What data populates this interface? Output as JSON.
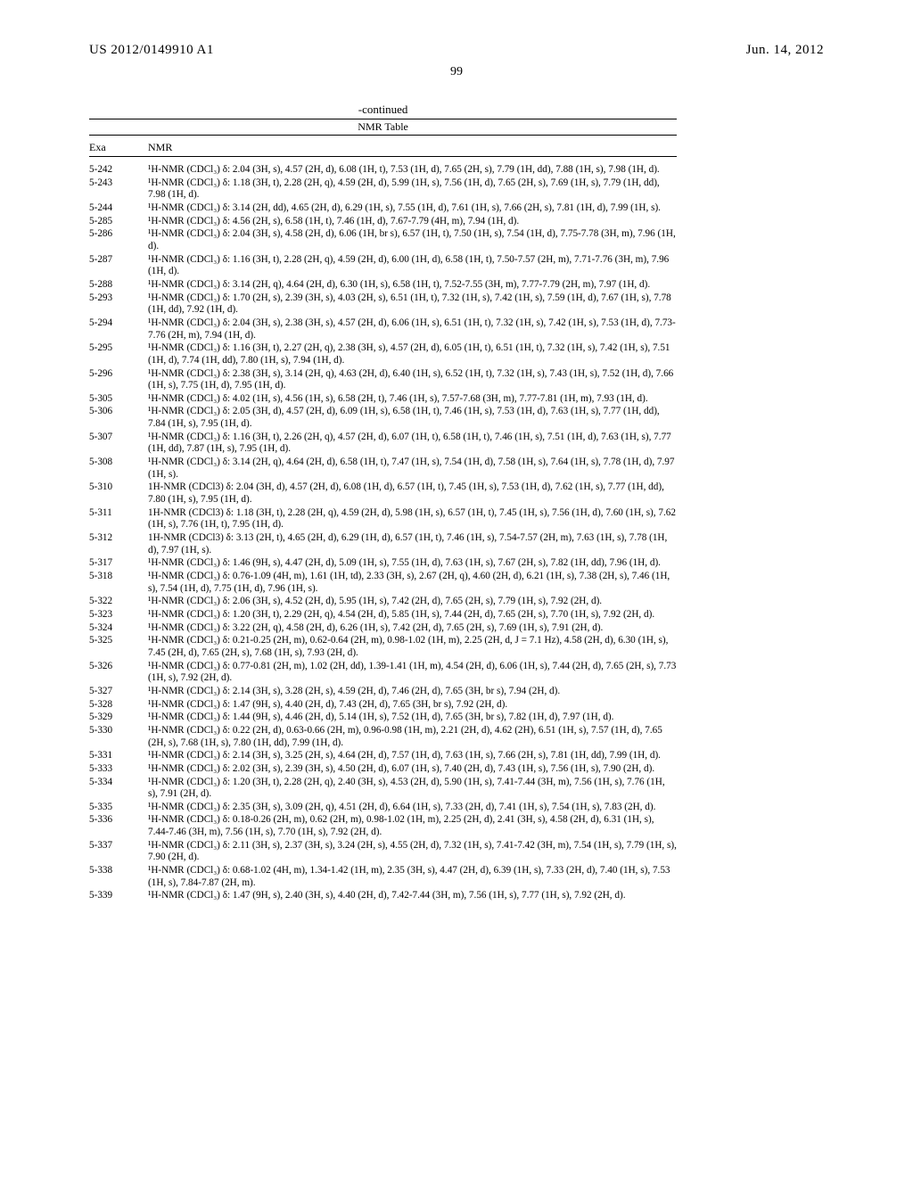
{
  "header": {
    "pub_number": "US 2012/0149910 A1",
    "date": "Jun. 14, 2012",
    "page_number": "99"
  },
  "table": {
    "continued_label": "-continued",
    "title": "NMR Table",
    "col_exa": "Exa",
    "col_nmr": "NMR",
    "rows": [
      {
        "exa": "5-242",
        "nmr": "¹H-NMR (CDCl₃) δ: 2.04 (3H, s), 4.57 (2H, d), 6.08 (1H, t), 7.53 (1H, d), 7.65 (2H, s), 7.79 (1H, dd), 7.88 (1H, s), 7.98 (1H, d)."
      },
      {
        "exa": "5-243",
        "nmr": "¹H-NMR (CDCl₃) δ: 1.18 (3H, t), 2.28 (2H, q), 4.59 (2H, d), 5.99 (1H, s), 7.56 (1H, d), 7.65 (2H, s), 7.69 (1H, s), 7.79 (1H, dd), 7.98 (1H, d)."
      },
      {
        "exa": "5-244",
        "nmr": "¹H-NMR (CDCl₃) δ: 3.14 (2H, dd), 4.65 (2H, d), 6.29 (1H, s), 7.55 (1H, d), 7.61 (1H, s), 7.66 (2H, s), 7.81 (1H, d), 7.99 (1H, s)."
      },
      {
        "exa": "5-285",
        "nmr": "¹H-NMR (CDCl₃) δ: 4.56 (2H, s), 6.58 (1H, t), 7.46 (1H, d), 7.67-7.79 (4H, m), 7.94 (1H, d)."
      },
      {
        "exa": "5-286",
        "nmr": "¹H-NMR (CDCl₃) δ: 2.04 (3H, s), 4.58 (2H, d), 6.06 (1H, br s), 6.57 (1H, t), 7.50 (1H, s), 7.54 (1H, d), 7.75-7.78 (3H, m), 7.96 (1H, d)."
      },
      {
        "exa": "5-287",
        "nmr": "¹H-NMR (CDCl₃) δ: 1.16 (3H, t), 2.28 (2H, q), 4.59 (2H, d), 6.00 (1H, d), 6.58 (1H, t), 7.50-7.57 (2H, m), 7.71-7.76 (3H, m), 7.96 (1H, d)."
      },
      {
        "exa": "5-288",
        "nmr": "¹H-NMR (CDCl₃) δ: 3.14 (2H, q), 4.64 (2H, d), 6.30 (1H, s), 6.58 (1H, t), 7.52-7.55 (3H, m), 7.77-7.79 (2H, m), 7.97 (1H, d)."
      },
      {
        "exa": "5-293",
        "nmr": "¹H-NMR (CDCl₃) δ: 1.70 (2H, s), 2.39 (3H, s), 4.03 (2H, s), 6.51 (1H, t), 7.32 (1H, s), 7.42 (1H, s), 7.59 (1H, d), 7.67 (1H, s), 7.78 (1H, dd), 7.92 (1H, d)."
      },
      {
        "exa": "5-294",
        "nmr": "¹H-NMR (CDCl₃) δ: 2.04 (3H, s), 2.38 (3H, s), 4.57 (2H, d), 6.06 (1H, s), 6.51 (1H, t), 7.32 (1H, s), 7.42 (1H, s), 7.53 (1H, d), 7.73-7.76 (2H, m), 7.94 (1H, d)."
      },
      {
        "exa": "5-295",
        "nmr": "¹H-NMR (CDCl₃) δ: 1.16 (3H, t), 2.27 (2H, q), 2.38 (3H, s), 4.57 (2H, d), 6.05 (1H, t), 6.51 (1H, t), 7.32 (1H, s), 7.42 (1H, s), 7.51 (1H, d), 7.74 (1H, dd), 7.80 (1H, s), 7.94 (1H, d)."
      },
      {
        "exa": "5-296",
        "nmr": "¹H-NMR (CDCl₃) δ: 2.38 (3H, s), 3.14 (2H, q), 4.63 (2H, d), 6.40 (1H, s), 6.52 (1H, t), 7.32 (1H, s), 7.43 (1H, s), 7.52 (1H, d), 7.66 (1H, s), 7.75 (1H, d), 7.95 (1H, d)."
      },
      {
        "exa": "5-305",
        "nmr": "¹H-NMR (CDCl₃) δ: 4.02 (1H, s), 4.56 (1H, s), 6.58 (2H, t), 7.46 (1H, s), 7.57-7.68 (3H, m), 7.77-7.81 (1H, m), 7.93 (1H, d)."
      },
      {
        "exa": "5-306",
        "nmr": "¹H-NMR (CDCl₃) δ: 2.05 (3H, d), 4.57 (2H, d), 6.09 (1H, s), 6.58 (1H, t), 7.46 (1H, s), 7.53 (1H, d), 7.63 (1H, s), 7.77 (1H, dd), 7.84 (1H, s), 7.95 (1H, d)."
      },
      {
        "exa": "5-307",
        "nmr": "¹H-NMR (CDCl₃) δ: 1.16 (3H, t), 2.26 (2H, q), 4.57 (2H, d), 6.07 (1H, t), 6.58 (1H, t), 7.46 (1H, s), 7.51 (1H, d), 7.63 (1H, s), 7.77 (1H, dd), 7.87 (1H, s), 7.95 (1H, d)."
      },
      {
        "exa": "5-308",
        "nmr": "¹H-NMR (CDCl₃) δ: 3.14 (2H, q), 4.64 (2H, d), 6.58 (1H, t), 7.47 (1H, s), 7.54 (1H, d), 7.58 (1H, s), 7.64 (1H, s), 7.78 (1H, d), 7.97 (1H, s)."
      },
      {
        "exa": "5-310",
        "nmr": "1H-NMR (CDCl3) δ: 2.04 (3H, d), 4.57 (2H, d), 6.08 (1H, d), 6.57 (1H, t), 7.45 (1H, s), 7.53 (1H, d), 7.62 (1H, s), 7.77 (1H, dd), 7.80 (1H, s), 7.95 (1H, d)."
      },
      {
        "exa": "5-311",
        "nmr": "1H-NMR (CDCl3) δ: 1.18 (3H, t), 2.28 (2H, q), 4.59 (2H, d), 5.98 (1H, s), 6.57 (1H, t), 7.45 (1H, s), 7.56 (1H, d), 7.60 (1H, s), 7.62 (1H, s), 7.76 (1H, t), 7.95 (1H, d)."
      },
      {
        "exa": "5-312",
        "nmr": "1H-NMR (CDCl3) δ: 3.13 (2H, t), 4.65 (2H, d), 6.29 (1H, d), 6.57 (1H, t), 7.46 (1H, s), 7.54-7.57 (2H, m), 7.63 (1H, s), 7.78 (1H, d), 7.97 (1H, s)."
      },
      {
        "exa": "5-317",
        "nmr": "¹H-NMR (CDCl₃) δ: 1.46 (9H, s), 4.47 (2H, d), 5.09 (1H, s), 7.55 (1H, d), 7.63 (1H, s), 7.67 (2H, s), 7.82 (1H, dd), 7.96 (1H, d)."
      },
      {
        "exa": "5-318",
        "nmr": "¹H-NMR (CDCl₃) δ: 0.76-1.09 (4H, m), 1.61 (1H, td), 2.33 (3H, s), 2.67 (2H, q), 4.60 (2H, d), 6.21 (1H, s), 7.38 (2H, s), 7.46 (1H, s), 7.54 (1H, d), 7.75 (1H, d), 7.96 (1H, s)."
      },
      {
        "exa": "5-322",
        "nmr": "¹H-NMR (CDCl₃) δ: 2.06 (3H, s), 4.52 (2H, d), 5.95 (1H, s), 7.42 (2H, d), 7.65 (2H, s), 7.79 (1H, s), 7.92 (2H, d)."
      },
      {
        "exa": "5-323",
        "nmr": "¹H-NMR (CDCl₃) δ: 1.20 (3H, t), 2.29 (2H, q), 4.54 (2H, d), 5.85 (1H, s), 7.44 (2H, d), 7.65 (2H, s), 7.70 (1H, s), 7.92 (2H, d)."
      },
      {
        "exa": "5-324",
        "nmr": "¹H-NMR (CDCl₃) δ: 3.22 (2H, q), 4.58 (2H, d), 6.26 (1H, s), 7.42 (2H, d), 7.65 (2H, s), 7.69 (1H, s), 7.91 (2H, d)."
      },
      {
        "exa": "5-325",
        "nmr": "¹H-NMR (CDCl₃) δ: 0.21-0.25 (2H, m), 0.62-0.64 (2H, m), 0.98-1.02 (1H, m), 2.25 (2H, d, J = 7.1 Hz), 4.58 (2H, d), 6.30 (1H, s), 7.45 (2H, d), 7.65 (2H, s), 7.68 (1H, s), 7.93 (2H, d)."
      },
      {
        "exa": "5-326",
        "nmr": "¹H-NMR (CDCl₃) δ: 0.77-0.81 (2H, m), 1.02 (2H, dd), 1.39-1.41 (1H, m), 4.54 (2H, d), 6.06 (1H, s), 7.44 (2H, d), 7.65 (2H, s), 7.73 (1H, s), 7.92 (2H, d)."
      },
      {
        "exa": "5-327",
        "nmr": "¹H-NMR (CDCl₃) δ: 2.14 (3H, s), 3.28 (2H, s), 4.59 (2H, d), 7.46 (2H, d), 7.65 (3H, br s), 7.94 (2H, d)."
      },
      {
        "exa": "5-328",
        "nmr": "¹H-NMR (CDCl₃) δ: 1.47 (9H, s), 4.40 (2H, d), 7.43 (2H, d), 7.65 (3H, br s), 7.92 (2H, d)."
      },
      {
        "exa": "5-329",
        "nmr": "¹H-NMR (CDCl₃) δ: 1.44 (9H, s), 4.46 (2H, d), 5.14 (1H, s), 7.52 (1H, d), 7.65 (3H, br s), 7.82 (1H, d), 7.97 (1H, d)."
      },
      {
        "exa": "5-330",
        "nmr": "¹H-NMR (CDCl₃) δ: 0.22 (2H, d), 0.63-0.66 (2H, m), 0.96-0.98 (1H, m), 2.21 (2H, d), 4.62 (2H), 6.51 (1H, s), 7.57 (1H, d), 7.65 (2H, s), 7.68 (1H, s), 7.80 (1H, dd), 7.99 (1H, d)."
      },
      {
        "exa": "5-331",
        "nmr": "¹H-NMR (CDCl₃) δ: 2.14 (3H, s), 3.25 (2H, s), 4.64 (2H, d), 7.57 (1H, d), 7.63 (1H, s), 7.66 (2H, s), 7.81 (1H, dd), 7.99 (1H, d)."
      },
      {
        "exa": "5-333",
        "nmr": "¹H-NMR (CDCl₃) δ: 2.02 (3H, s), 2.39 (3H, s), 4.50 (2H, d), 6.07 (1H, s), 7.40 (2H, d), 7.43 (1H, s), 7.56 (1H, s), 7.90 (2H, d)."
      },
      {
        "exa": "5-334",
        "nmr": "¹H-NMR (CDCl₃) δ: 1.20 (3H, t), 2.28 (2H, q), 2.40 (3H, s), 4.53 (2H, d), 5.90 (1H, s), 7.41-7.44 (3H, m), 7.56 (1H, s), 7.76 (1H, s), 7.91 (2H, d)."
      },
      {
        "exa": "5-335",
        "nmr": "¹H-NMR (CDCl₃) δ: 2.35 (3H, s), 3.09 (2H, q), 4.51 (2H, d), 6.64 (1H, s), 7.33 (2H, d), 7.41 (1H, s), 7.54 (1H, s), 7.83 (2H, d)."
      },
      {
        "exa": "5-336",
        "nmr": "¹H-NMR (CDCl₃) δ: 0.18-0.26 (2H, m), 0.62 (2H, m), 0.98-1.02 (1H, m), 2.25 (2H, d), 2.41 (3H, s), 4.58 (2H, d), 6.31 (1H, s), 7.44-7.46 (3H, m), 7.56 (1H, s), 7.70 (1H, s), 7.92 (2H, d)."
      },
      {
        "exa": "5-337",
        "nmr": "¹H-NMR (CDCl₃) δ: 2.11 (3H, s), 2.37 (3H, s), 3.24 (2H, s), 4.55 (2H, d), 7.32 (1H, s), 7.41-7.42 (3H, m), 7.54 (1H, s), 7.79 (1H, s), 7.90 (2H, d)."
      },
      {
        "exa": "5-338",
        "nmr": "¹H-NMR (CDCl₃) δ: 0.68-1.02 (4H, m), 1.34-1.42 (1H, m), 2.35 (3H, s), 4.47 (2H, d), 6.39 (1H, s), 7.33 (2H, d), 7.40 (1H, s), 7.53 (1H, s), 7.84-7.87 (2H, m)."
      },
      {
        "exa": "5-339",
        "nmr": "¹H-NMR (CDCl₃) δ: 1.47 (9H, s), 2.40 (3H, s), 4.40 (2H, d), 7.42-7.44 (3H, m), 7.56 (1H, s), 7.77 (1H, s), 7.92 (2H, d)."
      }
    ]
  }
}
